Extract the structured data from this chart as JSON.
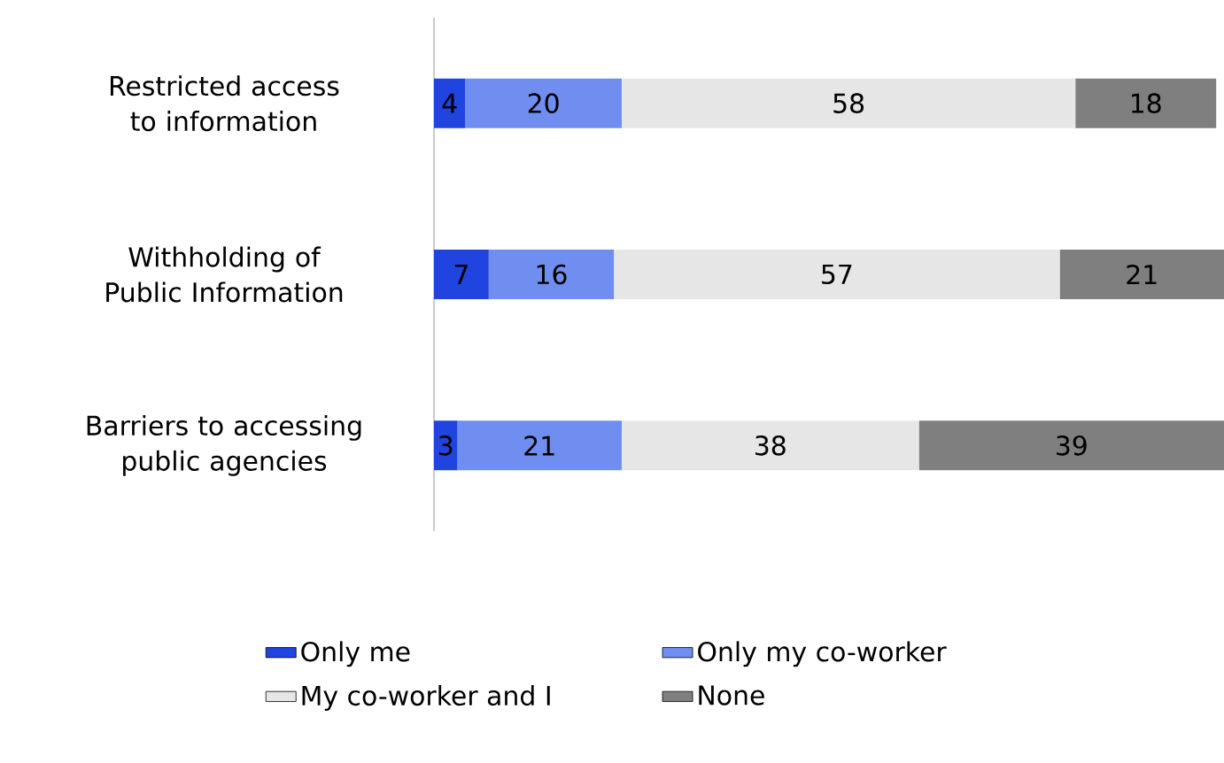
{
  "chart_data": {
    "type": "bar",
    "orientation": "horizontal",
    "stacked": true,
    "data_labels": true,
    "legend": "bottom",
    "categories": [
      "Restricted access to information",
      "Withholding of Public Information",
      "Barriers to accessing public agencies"
    ],
    "series": [
      {
        "name": "Only me",
        "color": "#1f44e0",
        "values": [
          4,
          7,
          3
        ]
      },
      {
        "name": "Only my co-worker",
        "color": "#6f8ef0",
        "values": [
          20,
          16,
          21
        ]
      },
      {
        "name": "My co-worker and I",
        "color": "#e6e6e6",
        "values": [
          58,
          57,
          38
        ]
      },
      {
        "name": "None",
        "color": "#7f7f7f",
        "values": [
          18,
          21,
          39
        ]
      }
    ]
  }
}
